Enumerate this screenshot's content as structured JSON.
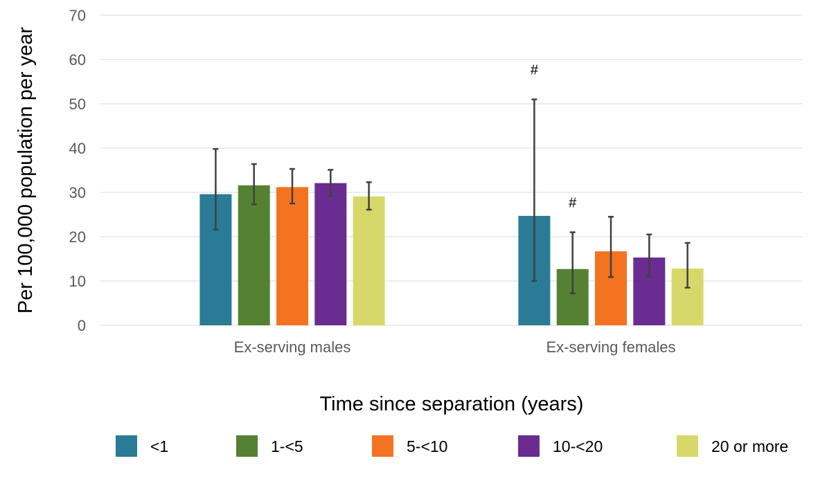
{
  "chart_data": {
    "type": "bar",
    "title": "",
    "xlabel": "Time since separation (years)",
    "ylabel": "Per 100,000 population per year",
    "ylim": [
      0,
      70
    ],
    "yticks": [
      0,
      10,
      20,
      30,
      40,
      50,
      60,
      70
    ],
    "grid": true,
    "legend_position": "bottom",
    "categories": [
      "Ex-serving males",
      "Ex-serving females"
    ],
    "series": [
      {
        "name": "<1",
        "color": "#2a7b96",
        "values": [
          29.6,
          24.7
        ],
        "error_low": [
          21.6,
          10.0
        ],
        "error_high": [
          39.8,
          51.0
        ],
        "annotations": [
          "",
          "#"
        ]
      },
      {
        "name": "1-<5",
        "color": "#548232",
        "values": [
          31.6,
          12.7
        ],
        "error_low": [
          27.3,
          7.2
        ],
        "error_high": [
          36.4,
          21.0
        ],
        "annotations": [
          "",
          "#"
        ]
      },
      {
        "name": "5-<10",
        "color": "#f47321",
        "values": [
          31.2,
          16.7
        ],
        "error_low": [
          27.5,
          10.9
        ],
        "error_high": [
          35.3,
          24.5
        ],
        "annotations": [
          "",
          ""
        ]
      },
      {
        "name": "10-<20",
        "color": "#6a2c91",
        "values": [
          32.1,
          15.3
        ],
        "error_low": [
          29.2,
          11.0
        ],
        "error_high": [
          35.1,
          20.5
        ],
        "annotations": [
          "",
          ""
        ]
      },
      {
        "name": "20 or more",
        "color": "#d8d86a",
        "values": [
          29.1,
          12.8
        ],
        "error_low": [
          26.1,
          8.5
        ],
        "error_high": [
          32.3,
          18.6
        ],
        "annotations": [
          "",
          ""
        ]
      }
    ]
  }
}
